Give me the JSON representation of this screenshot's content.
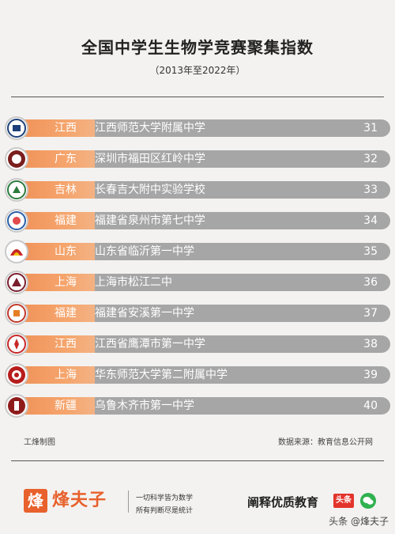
{
  "header": {
    "title": "全国中学生生物学竞赛聚集指数",
    "subtitle": "（2013年至2022年）"
  },
  "rows": [
    {
      "province": "江西",
      "school": "江西师范大学附属中学",
      "rank": "31"
    },
    {
      "province": "广东",
      "school": "深圳市福田区红岭中学",
      "rank": "32"
    },
    {
      "province": "吉林",
      "school": "长春吉大附中实验学校",
      "rank": "33"
    },
    {
      "province": "福建",
      "school": "福建省泉州市第七中学",
      "rank": "34"
    },
    {
      "province": "山东",
      "school": "山东省临沂第一中学",
      "rank": "35"
    },
    {
      "province": "上海",
      "school": "上海市松江二中",
      "rank": "36"
    },
    {
      "province": "福建",
      "school": "福建省安溪第一中学",
      "rank": "37"
    },
    {
      "province": "江西",
      "school": "江西省鹰潭市第一中学",
      "rank": "38"
    },
    {
      "province": "上海",
      "school": "华东师范大学第二附属中学",
      "rank": "39"
    },
    {
      "province": "新疆",
      "school": "乌鲁木齐市第一中学",
      "rank": "40"
    }
  ],
  "footer": {
    "maker": "工烽制图",
    "source": "数据来源：教育信息公开网",
    "brand_char": "烽",
    "brand_name": "烽夫子",
    "slogan_line1": "一切科学皆为数学",
    "slogan_line2": "所有判断尽是统计",
    "motto": "阐释优质教育",
    "toutiao": "头条",
    "watermark": "头条 @烽夫子"
  },
  "colors": {
    "background": "#f3f2f0",
    "bar_gray": "#a6a6a6",
    "bar_orange": "#f0935a",
    "brand": "#e8612c"
  }
}
